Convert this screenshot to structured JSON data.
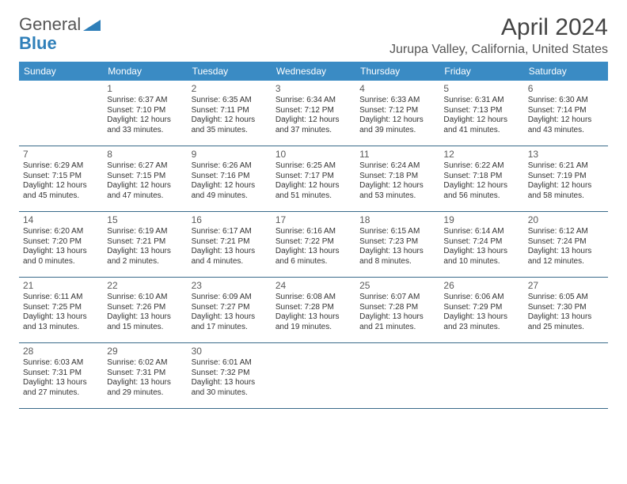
{
  "logo": {
    "text_general": "General",
    "text_blue": "Blue"
  },
  "title": "April 2024",
  "location": "Jurupa Valley, California, United States",
  "colors": {
    "header_bg": "#3a8bc4",
    "header_text": "#ffffff",
    "row_border": "#3a6a8a",
    "accent_blue": "#2f7fb9"
  },
  "day_headers": [
    "Sunday",
    "Monday",
    "Tuesday",
    "Wednesday",
    "Thursday",
    "Friday",
    "Saturday"
  ],
  "weeks": [
    [
      {
        "day": "",
        "sunrise": "",
        "sunset": "",
        "daylight1": "",
        "daylight2": ""
      },
      {
        "day": "1",
        "sunrise": "Sunrise: 6:37 AM",
        "sunset": "Sunset: 7:10 PM",
        "daylight1": "Daylight: 12 hours",
        "daylight2": "and 33 minutes."
      },
      {
        "day": "2",
        "sunrise": "Sunrise: 6:35 AM",
        "sunset": "Sunset: 7:11 PM",
        "daylight1": "Daylight: 12 hours",
        "daylight2": "and 35 minutes."
      },
      {
        "day": "3",
        "sunrise": "Sunrise: 6:34 AM",
        "sunset": "Sunset: 7:12 PM",
        "daylight1": "Daylight: 12 hours",
        "daylight2": "and 37 minutes."
      },
      {
        "day": "4",
        "sunrise": "Sunrise: 6:33 AM",
        "sunset": "Sunset: 7:12 PM",
        "daylight1": "Daylight: 12 hours",
        "daylight2": "and 39 minutes."
      },
      {
        "day": "5",
        "sunrise": "Sunrise: 6:31 AM",
        "sunset": "Sunset: 7:13 PM",
        "daylight1": "Daylight: 12 hours",
        "daylight2": "and 41 minutes."
      },
      {
        "day": "6",
        "sunrise": "Sunrise: 6:30 AM",
        "sunset": "Sunset: 7:14 PM",
        "daylight1": "Daylight: 12 hours",
        "daylight2": "and 43 minutes."
      }
    ],
    [
      {
        "day": "7",
        "sunrise": "Sunrise: 6:29 AM",
        "sunset": "Sunset: 7:15 PM",
        "daylight1": "Daylight: 12 hours",
        "daylight2": "and 45 minutes."
      },
      {
        "day": "8",
        "sunrise": "Sunrise: 6:27 AM",
        "sunset": "Sunset: 7:15 PM",
        "daylight1": "Daylight: 12 hours",
        "daylight2": "and 47 minutes."
      },
      {
        "day": "9",
        "sunrise": "Sunrise: 6:26 AM",
        "sunset": "Sunset: 7:16 PM",
        "daylight1": "Daylight: 12 hours",
        "daylight2": "and 49 minutes."
      },
      {
        "day": "10",
        "sunrise": "Sunrise: 6:25 AM",
        "sunset": "Sunset: 7:17 PM",
        "daylight1": "Daylight: 12 hours",
        "daylight2": "and 51 minutes."
      },
      {
        "day": "11",
        "sunrise": "Sunrise: 6:24 AM",
        "sunset": "Sunset: 7:18 PM",
        "daylight1": "Daylight: 12 hours",
        "daylight2": "and 53 minutes."
      },
      {
        "day": "12",
        "sunrise": "Sunrise: 6:22 AM",
        "sunset": "Sunset: 7:18 PM",
        "daylight1": "Daylight: 12 hours",
        "daylight2": "and 56 minutes."
      },
      {
        "day": "13",
        "sunrise": "Sunrise: 6:21 AM",
        "sunset": "Sunset: 7:19 PM",
        "daylight1": "Daylight: 12 hours",
        "daylight2": "and 58 minutes."
      }
    ],
    [
      {
        "day": "14",
        "sunrise": "Sunrise: 6:20 AM",
        "sunset": "Sunset: 7:20 PM",
        "daylight1": "Daylight: 13 hours",
        "daylight2": "and 0 minutes."
      },
      {
        "day": "15",
        "sunrise": "Sunrise: 6:19 AM",
        "sunset": "Sunset: 7:21 PM",
        "daylight1": "Daylight: 13 hours",
        "daylight2": "and 2 minutes."
      },
      {
        "day": "16",
        "sunrise": "Sunrise: 6:17 AM",
        "sunset": "Sunset: 7:21 PM",
        "daylight1": "Daylight: 13 hours",
        "daylight2": "and 4 minutes."
      },
      {
        "day": "17",
        "sunrise": "Sunrise: 6:16 AM",
        "sunset": "Sunset: 7:22 PM",
        "daylight1": "Daylight: 13 hours",
        "daylight2": "and 6 minutes."
      },
      {
        "day": "18",
        "sunrise": "Sunrise: 6:15 AM",
        "sunset": "Sunset: 7:23 PM",
        "daylight1": "Daylight: 13 hours",
        "daylight2": "and 8 minutes."
      },
      {
        "day": "19",
        "sunrise": "Sunrise: 6:14 AM",
        "sunset": "Sunset: 7:24 PM",
        "daylight1": "Daylight: 13 hours",
        "daylight2": "and 10 minutes."
      },
      {
        "day": "20",
        "sunrise": "Sunrise: 6:12 AM",
        "sunset": "Sunset: 7:24 PM",
        "daylight1": "Daylight: 13 hours",
        "daylight2": "and 12 minutes."
      }
    ],
    [
      {
        "day": "21",
        "sunrise": "Sunrise: 6:11 AM",
        "sunset": "Sunset: 7:25 PM",
        "daylight1": "Daylight: 13 hours",
        "daylight2": "and 13 minutes."
      },
      {
        "day": "22",
        "sunrise": "Sunrise: 6:10 AM",
        "sunset": "Sunset: 7:26 PM",
        "daylight1": "Daylight: 13 hours",
        "daylight2": "and 15 minutes."
      },
      {
        "day": "23",
        "sunrise": "Sunrise: 6:09 AM",
        "sunset": "Sunset: 7:27 PM",
        "daylight1": "Daylight: 13 hours",
        "daylight2": "and 17 minutes."
      },
      {
        "day": "24",
        "sunrise": "Sunrise: 6:08 AM",
        "sunset": "Sunset: 7:28 PM",
        "daylight1": "Daylight: 13 hours",
        "daylight2": "and 19 minutes."
      },
      {
        "day": "25",
        "sunrise": "Sunrise: 6:07 AM",
        "sunset": "Sunset: 7:28 PM",
        "daylight1": "Daylight: 13 hours",
        "daylight2": "and 21 minutes."
      },
      {
        "day": "26",
        "sunrise": "Sunrise: 6:06 AM",
        "sunset": "Sunset: 7:29 PM",
        "daylight1": "Daylight: 13 hours",
        "daylight2": "and 23 minutes."
      },
      {
        "day": "27",
        "sunrise": "Sunrise: 6:05 AM",
        "sunset": "Sunset: 7:30 PM",
        "daylight1": "Daylight: 13 hours",
        "daylight2": "and 25 minutes."
      }
    ],
    [
      {
        "day": "28",
        "sunrise": "Sunrise: 6:03 AM",
        "sunset": "Sunset: 7:31 PM",
        "daylight1": "Daylight: 13 hours",
        "daylight2": "and 27 minutes."
      },
      {
        "day": "29",
        "sunrise": "Sunrise: 6:02 AM",
        "sunset": "Sunset: 7:31 PM",
        "daylight1": "Daylight: 13 hours",
        "daylight2": "and 29 minutes."
      },
      {
        "day": "30",
        "sunrise": "Sunrise: 6:01 AM",
        "sunset": "Sunset: 7:32 PM",
        "daylight1": "Daylight: 13 hours",
        "daylight2": "and 30 minutes."
      },
      {
        "day": "",
        "sunrise": "",
        "sunset": "",
        "daylight1": "",
        "daylight2": ""
      },
      {
        "day": "",
        "sunrise": "",
        "sunset": "",
        "daylight1": "",
        "daylight2": ""
      },
      {
        "day": "",
        "sunrise": "",
        "sunset": "",
        "daylight1": "",
        "daylight2": ""
      },
      {
        "day": "",
        "sunrise": "",
        "sunset": "",
        "daylight1": "",
        "daylight2": ""
      }
    ]
  ]
}
